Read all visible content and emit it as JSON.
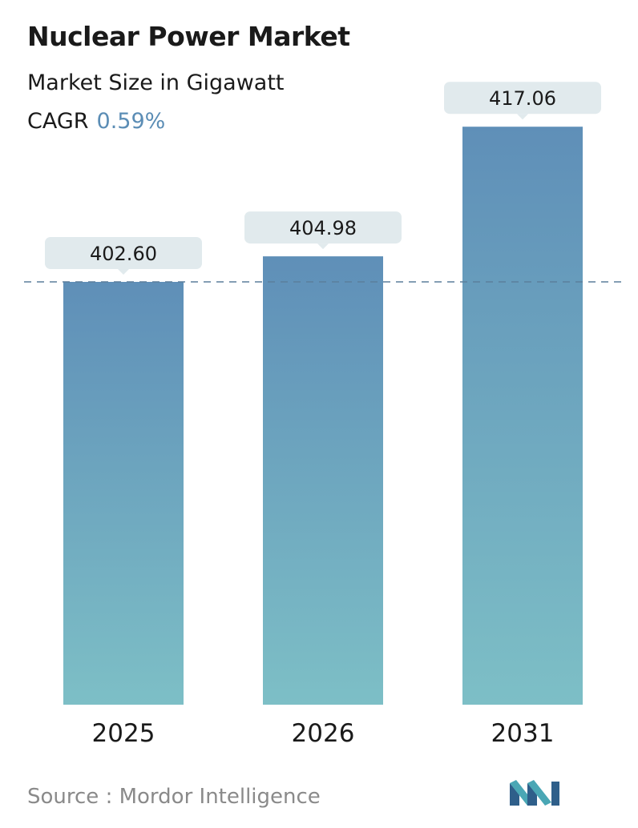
{
  "header": {
    "title": "Nuclear Power Market",
    "subtitle": "Market Size in Gigawatt",
    "cagr_label": "CAGR",
    "cagr_value": "0.59%"
  },
  "chart_data": {
    "type": "bar",
    "title": "Nuclear Power Market",
    "subtitle": "Market Size in Gigawatt",
    "categories": [
      "2025",
      "2026",
      "2031"
    ],
    "values": [
      402.6,
      404.98,
      417.06
    ],
    "value_labels": [
      "402.60",
      "404.98",
      "417.06"
    ],
    "reference_line": 402.6,
    "grid": false,
    "legend": "none"
  },
  "footer": {
    "source": "Source :  Mordor Intelligence",
    "logo": "mordor-intelligence-logo"
  },
  "colors": {
    "bar_top": "#5f8fb8",
    "bar_bottom": "#7dbfc6",
    "label_bg": "#e1eaed",
    "dashed_line": "#5b7f9c",
    "cagr": "#5b8db5",
    "source_text": "#8a8a8a"
  }
}
